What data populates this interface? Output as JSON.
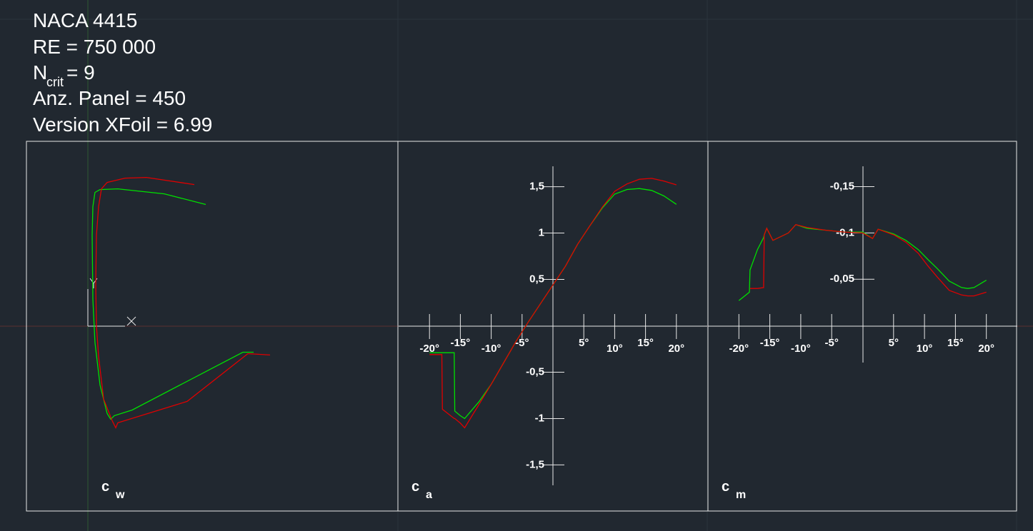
{
  "header": {
    "airfoil": "NACA 4415",
    "reynolds": "RE = 750 000",
    "ncrit": {
      "symbol": "N",
      "subscript": "crit",
      "value": "= 9"
    },
    "panels": "Anz. Panel = 450",
    "version": "Version XFoil = 6.99"
  },
  "chart_data": [
    {
      "type": "polar",
      "label": "c",
      "label_subscript": "w",
      "xlim": [
        0,
        0.2
      ],
      "ylim": [
        -1.72,
        1.72
      ],
      "series": [
        {
          "color": "#00e000",
          "x": [
            0.182,
            0.1702,
            0.0486,
            0.029,
            0.0251,
            0.0212,
            0.0133,
            0.0078,
            0.0055,
            0.0047,
            0.0055,
            0.0078,
            0.0133,
            0.0329,
            0.0839,
            0.1294
          ],
          "values": [
            -0.285,
            -0.285,
            -0.908,
            -0.969,
            -1.008,
            -0.946,
            -0.638,
            -0.177,
            0.285,
            0.977,
            1.285,
            1.438,
            1.469,
            1.477,
            1.423,
            1.308
          ]
        },
        {
          "color": "#e00000",
          "x": [
            0.2,
            0.1757,
            0.109,
            0.0329,
            0.0306,
            0.0267,
            0.0173,
            0.0118,
            0.0094,
            0.0086,
            0.0094,
            0.0118,
            0.0149,
            0.0212,
            0.0408,
            0.0643,
            0.1169
          ],
          "values": [
            -0.315,
            -0.3,
            -0.815,
            -1.046,
            -1.1,
            -1.023,
            -0.792,
            -0.331,
            0,
            0.438,
            0.977,
            1.285,
            1.477,
            1.546,
            1.592,
            1.6,
            1.523
          ]
        }
      ]
    },
    {
      "type": "line",
      "label": "c",
      "label_subscript": "a",
      "xlim": [
        -25,
        25
      ],
      "ylim": [
        -1.72,
        1.72
      ],
      "x": [
        -20,
        -18,
        -17.9,
        -16,
        -15.9,
        -15,
        -14.3,
        -12,
        -10,
        -8,
        -6,
        -4,
        -2,
        0,
        2,
        4,
        6,
        8,
        10,
        12,
        14,
        16,
        18,
        20
      ],
      "xticks": [
        {
          "value": -20,
          "label": "-20°"
        },
        {
          "value": -15,
          "label": "-15°"
        },
        {
          "value": -10,
          "label": "-10°"
        },
        {
          "value": -5,
          "label": "-5°"
        },
        {
          "value": 5,
          "label": "5°"
        },
        {
          "value": 10,
          "label": "10°"
        },
        {
          "value": 15,
          "label": "15°"
        },
        {
          "value": 20,
          "label": "20°"
        }
      ],
      "yticks": [
        {
          "value": -1.5,
          "label": "-1,5"
        },
        -1,
        {
          "value": -0.5,
          "label": "-0,5"
        },
        {
          "value": 0.5,
          "label": "0,5"
        },
        1,
        {
          "value": 1.5,
          "label": "1,5"
        }
      ],
      "series": [
        {
          "color": "#00e000",
          "values": [
            -0.29,
            -0.29,
            -0.29,
            -0.29,
            -0.92,
            -0.97,
            -1.0,
            -0.82,
            -0.63,
            -0.4,
            -0.17,
            0.04,
            0.24,
            0.44,
            0.64,
            0.88,
            1.08,
            1.27,
            1.42,
            1.47,
            1.48,
            1.46,
            1.4,
            1.31
          ]
        },
        {
          "color": "#e00000",
          "values": [
            -0.31,
            -0.31,
            -0.9,
            -1.0,
            -1.0,
            -1.05,
            -1.1,
            -0.85,
            -0.63,
            -0.4,
            -0.17,
            0.04,
            0.24,
            0.44,
            0.64,
            0.88,
            1.08,
            1.28,
            1.45,
            1.53,
            1.58,
            1.59,
            1.56,
            1.52
          ]
        }
      ]
    },
    {
      "type": "line",
      "label": "c",
      "label_subscript": "m",
      "xlim": [
        -25,
        25
      ],
      "ylim": [
        0.04,
        -0.172
      ],
      "x": [
        -20,
        -18.3,
        -18.2,
        -17,
        -16,
        -15.9,
        -15.5,
        -14.5,
        -12,
        -10.8,
        -9,
        -6,
        -3,
        0,
        1.6,
        2.5,
        5,
        7,
        9,
        10.6,
        12,
        14,
        16,
        17,
        18,
        20
      ],
      "xticks": [
        {
          "value": -20,
          "label": "-20°"
        },
        {
          "value": -15,
          "label": "-15°"
        },
        {
          "value": -10,
          "label": "-10°"
        },
        {
          "value": -5,
          "label": "-5°"
        },
        {
          "value": 5,
          "label": "5°"
        },
        {
          "value": 10,
          "label": "10°"
        },
        {
          "value": 15,
          "label": "15°"
        },
        {
          "value": 20,
          "label": "20°"
        }
      ],
      "yticks": [
        {
          "value": -0.15,
          "label": "-0,15"
        },
        {
          "value": -0.1,
          "label": "-0,1"
        },
        {
          "value": -0.05,
          "label": "-0,05"
        }
      ],
      "series": [
        {
          "color": "#00e000",
          "values": [
            -0.027,
            -0.036,
            -0.06,
            -0.082,
            -0.095,
            -0.098,
            -0.105,
            -0.092,
            -0.1,
            -0.109,
            -0.105,
            -0.103,
            -0.101,
            -0.101,
            -0.094,
            -0.104,
            -0.099,
            -0.092,
            -0.082,
            -0.071,
            -0.062,
            -0.048,
            -0.041,
            -0.04,
            -0.041,
            -0.049
          ]
        },
        {
          "color": "#e00000",
          "values": [
            null,
            null,
            -0.04,
            -0.04,
            -0.041,
            -0.098,
            -0.105,
            -0.092,
            -0.1,
            -0.109,
            -0.106,
            -0.103,
            -0.101,
            -0.1,
            -0.094,
            -0.104,
            -0.098,
            -0.09,
            -0.078,
            -0.064,
            -0.053,
            -0.038,
            -0.033,
            -0.032,
            -0.032,
            -0.036
          ]
        }
      ]
    }
  ]
}
